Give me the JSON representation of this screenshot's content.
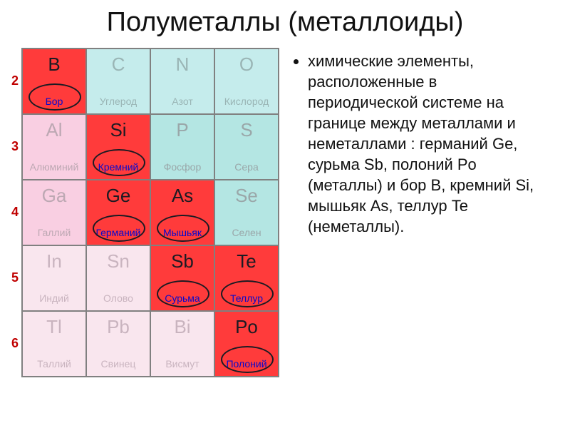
{
  "title": "Полуметаллы (металлоиды)",
  "row_labels": [
    "2",
    "3",
    "4",
    "5",
    "6"
  ],
  "rows": [
    [
      {
        "sym": "B",
        "name": "Бор",
        "bg": "c-red",
        "sym_cls": "t-dark",
        "name_cls": "t-blue",
        "circle": true
      },
      {
        "sym": "C",
        "name": "Углерод",
        "bg": "c-cyan",
        "sym_cls": "t-gray",
        "name_cls": "t-gray",
        "circle": false
      },
      {
        "sym": "N",
        "name": "Азот",
        "bg": "c-cyan",
        "sym_cls": "t-gray",
        "name_cls": "t-gray",
        "circle": false
      },
      {
        "sym": "O",
        "name": "Кислород",
        "bg": "c-cyan",
        "sym_cls": "t-gray",
        "name_cls": "t-gray",
        "circle": false
      }
    ],
    [
      {
        "sym": "Al",
        "name": "Алюминий",
        "bg": "c-pink",
        "sym_cls": "t-pgray",
        "name_cls": "t-pgray",
        "circle": false
      },
      {
        "sym": "Si",
        "name": "Кремний",
        "bg": "c-red",
        "sym_cls": "t-dark",
        "name_cls": "t-blue",
        "circle": true
      },
      {
        "sym": "P",
        "name": "Фосфор",
        "bg": "c-cyan2",
        "sym_cls": "t-dgray",
        "name_cls": "t-dgray",
        "circle": false
      },
      {
        "sym": "S",
        "name": "Сера",
        "bg": "c-cyan2",
        "sym_cls": "t-dgray",
        "name_cls": "t-dgray",
        "circle": false
      }
    ],
    [
      {
        "sym": "Ga",
        "name": "Галлий",
        "bg": "c-pink",
        "sym_cls": "t-pgray",
        "name_cls": "t-pgray",
        "circle": false
      },
      {
        "sym": "Ge",
        "name": "Германий",
        "bg": "c-red",
        "sym_cls": "t-dark",
        "name_cls": "t-blue",
        "circle": true
      },
      {
        "sym": "As",
        "name": "Мышьяк",
        "bg": "c-red",
        "sym_cls": "t-dark",
        "name_cls": "t-blue",
        "circle": true
      },
      {
        "sym": "Se",
        "name": "Селен",
        "bg": "c-cyan2",
        "sym_cls": "t-dgray",
        "name_cls": "t-dgray",
        "circle": false
      }
    ],
    [
      {
        "sym": "In",
        "name": "Индий",
        "bg": "c-ltpink",
        "sym_cls": "t-pg2",
        "name_cls": "t-pg2",
        "circle": false
      },
      {
        "sym": "Sn",
        "name": "Олово",
        "bg": "c-ltpink",
        "sym_cls": "t-pg2",
        "name_cls": "t-pg2",
        "circle": false
      },
      {
        "sym": "Sb",
        "name": "Сурьма",
        "bg": "c-red",
        "sym_cls": "t-dark",
        "name_cls": "t-blue",
        "circle": true
      },
      {
        "sym": "Te",
        "name": "Теллур",
        "bg": "c-red",
        "sym_cls": "t-dark",
        "name_cls": "t-blue",
        "circle": true
      }
    ],
    [
      {
        "sym": "Tl",
        "name": "Таллий",
        "bg": "c-ltpink",
        "sym_cls": "t-pg2",
        "name_cls": "t-pg2",
        "circle": false
      },
      {
        "sym": "Pb",
        "name": "Свинец",
        "bg": "c-ltpink",
        "sym_cls": "t-pg2",
        "name_cls": "t-pg2",
        "circle": false
      },
      {
        "sym": "Bi",
        "name": "Висмут",
        "bg": "c-ltpink",
        "sym_cls": "t-pg2",
        "name_cls": "t-pg2",
        "circle": false
      },
      {
        "sym": "Po",
        "name": "Полоний",
        "bg": "c-red",
        "sym_cls": "t-dark",
        "name_cls": "t-blue",
        "circle": true
      }
    ]
  ],
  "bullet": "химические элементы, расположенные в периодической системе на границе между металлами и неметаллами : германий Ge, сурьма Sb, полоний Po (металлы) и бор B, кремний Si, мышьяк As, теллур Te (неметаллы).",
  "colors": {
    "red": "#ff3b3b",
    "cyan": "#c5ecec",
    "cyan2": "#b4e6e3",
    "pink": "#f9cfe2",
    "ltpink": "#f9e6ee",
    "accent_blue": "#0a0acc",
    "row_label": "#c00000"
  },
  "circle_style": {
    "w": 74,
    "h": 38,
    "border": "#1b1b23"
  }
}
